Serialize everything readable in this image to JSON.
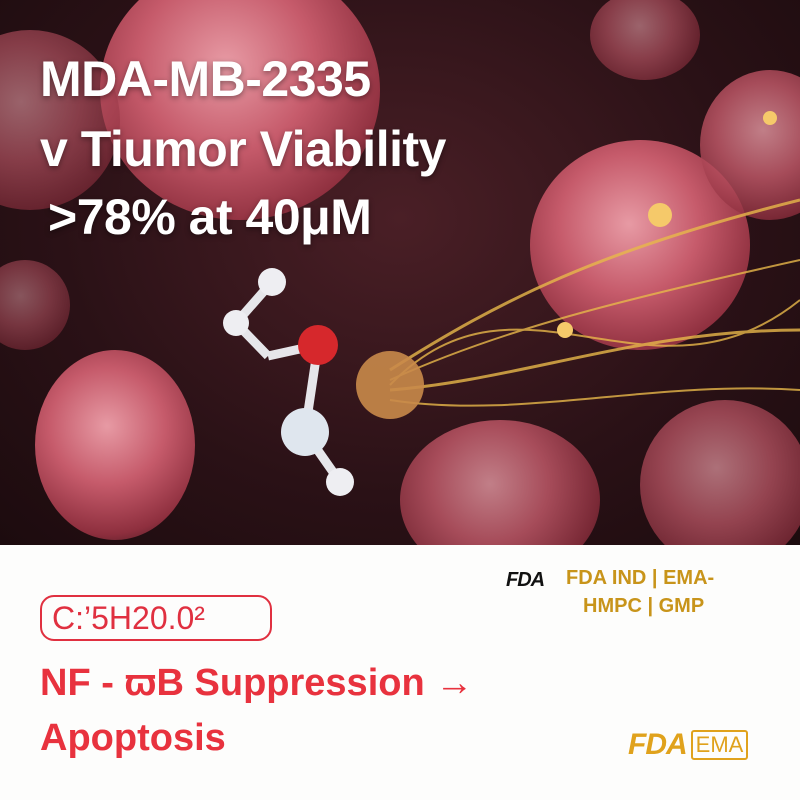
{
  "hero": {
    "title_lines": [
      "MDA-MB-2335",
      "v Tiumor Viability",
      ">78% at 40μM"
    ]
  },
  "bottom": {
    "formula": "C:’5H20.0²",
    "headline_lines": [
      "NF - ϖB Suppression →",
      "Apoptosis"
    ],
    "regulatory_lines": [
      "FDA IND | EMA-",
      "HMPC | GMP"
    ],
    "fda_mark": "FDA",
    "logo": {
      "fda": "FDA",
      "ema": "EMA"
    }
  },
  "colors": {
    "accent_red": "#e8323e",
    "gold": "#c8941a",
    "background_dark": "#2a1116"
  }
}
